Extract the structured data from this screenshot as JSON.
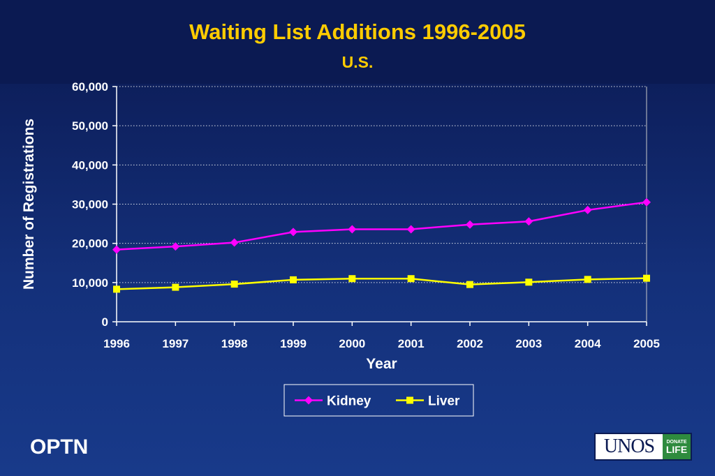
{
  "slide": {
    "title": "Waiting List Additions 1996-2005",
    "subtitle": "U.S.",
    "footer_left": "OPTN",
    "logo": {
      "brand": "UNOS",
      "badge_top": "DONATE",
      "badge_bottom": "LIFE"
    }
  },
  "colors": {
    "title": "#ffcc00",
    "kidney": "#ff00ff",
    "liver": "#ffff00",
    "axis_text": "#ffffff"
  },
  "chart_data": {
    "type": "line",
    "title": "Waiting List Additions 1996-2005",
    "subtitle": "U.S.",
    "xlabel": "Year",
    "ylabel": "Number of Registrations",
    "x": [
      "1996",
      "1997",
      "1998",
      "1999",
      "2000",
      "2001",
      "2002",
      "2003",
      "2004",
      "2005"
    ],
    "ylim": [
      0,
      60000
    ],
    "yticks": [
      0,
      10000,
      20000,
      30000,
      40000,
      50000,
      60000
    ],
    "ytick_labels": [
      "0",
      "10,000",
      "20,000",
      "30,000",
      "40,000",
      "50,000",
      "60,000"
    ],
    "grid": "horizontal dotted",
    "legend_position": "bottom-center",
    "series": [
      {
        "name": "Kidney",
        "marker": "diamond",
        "color": "#ff00ff",
        "values": [
          18400,
          19200,
          20200,
          22900,
          23600,
          23600,
          24800,
          25600,
          28500,
          30500
        ]
      },
      {
        "name": "Liver",
        "marker": "square",
        "color": "#ffff00",
        "values": [
          8300,
          8800,
          9600,
          10700,
          11000,
          11000,
          9500,
          10100,
          10800,
          11100
        ]
      }
    ]
  }
}
